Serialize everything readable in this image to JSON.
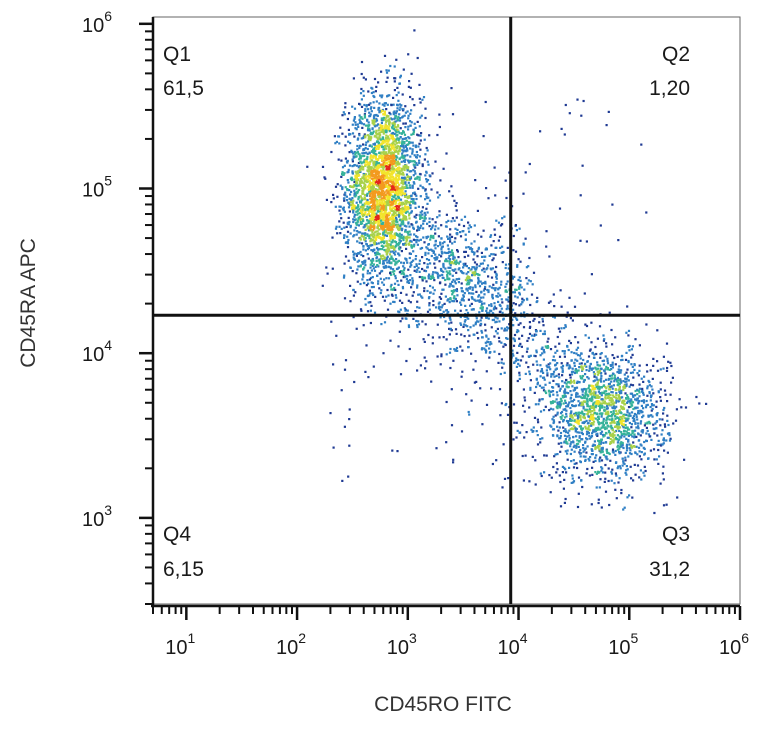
{
  "chart_data": {
    "type": "scatter",
    "subtype": "flow-cytometry-density-dot-plot",
    "x_axis": {
      "label": "CD45RO FITC",
      "scale": "log",
      "range": [
        5,
        1000000
      ],
      "ticks": [
        {
          "base": "10",
          "exp": "1",
          "value": 10
        },
        {
          "base": "10",
          "exp": "2",
          "value": 100
        },
        {
          "base": "10",
          "exp": "3",
          "value": 1000
        },
        {
          "base": "10",
          "exp": "4",
          "value": 10000
        },
        {
          "base": "10",
          "exp": "5",
          "value": 100000
        },
        {
          "base": "10",
          "exp": "6",
          "value": 1000000
        }
      ]
    },
    "y_axis": {
      "label": "CD45RA APC",
      "scale": "log",
      "range": [
        300,
        1100000
      ],
      "ticks": [
        {
          "base": "10",
          "exp": "3",
          "value": 1000
        },
        {
          "base": "10",
          "exp": "4",
          "value": 10000
        },
        {
          "base": "10",
          "exp": "5",
          "value": 100000
        },
        {
          "base": "10",
          "exp": "6",
          "value": 1000000
        }
      ]
    },
    "gate": {
      "x": 8500,
      "y": 17000
    },
    "quadrants": [
      {
        "name": "Q1",
        "value": "61,5",
        "position": "top-left"
      },
      {
        "name": "Q2",
        "value": "1,20",
        "position": "top-right"
      },
      {
        "name": "Q3",
        "value": "31,2",
        "position": "bottom-right"
      },
      {
        "name": "Q4",
        "value": "6,15",
        "position": "bottom-left"
      }
    ],
    "populations": [
      {
        "center_x": 600,
        "center_y": 100000,
        "spread_log_x": 0.17,
        "spread_log_y": 0.28,
        "weight": 0.55
      },
      {
        "center_x": 3000,
        "center_y": 25000,
        "spread_log_x": 0.35,
        "spread_log_y": 0.22,
        "weight": 0.12
      },
      {
        "center_x": 60000,
        "center_y": 4200,
        "spread_log_x": 0.28,
        "spread_log_y": 0.2,
        "weight": 0.3
      }
    ],
    "density_colors": [
      "#1f3a93",
      "#2f7fc4",
      "#35b29a",
      "#a8d14a",
      "#f2e42c",
      "#f39a1f",
      "#e4261c"
    ],
    "grid": false
  }
}
